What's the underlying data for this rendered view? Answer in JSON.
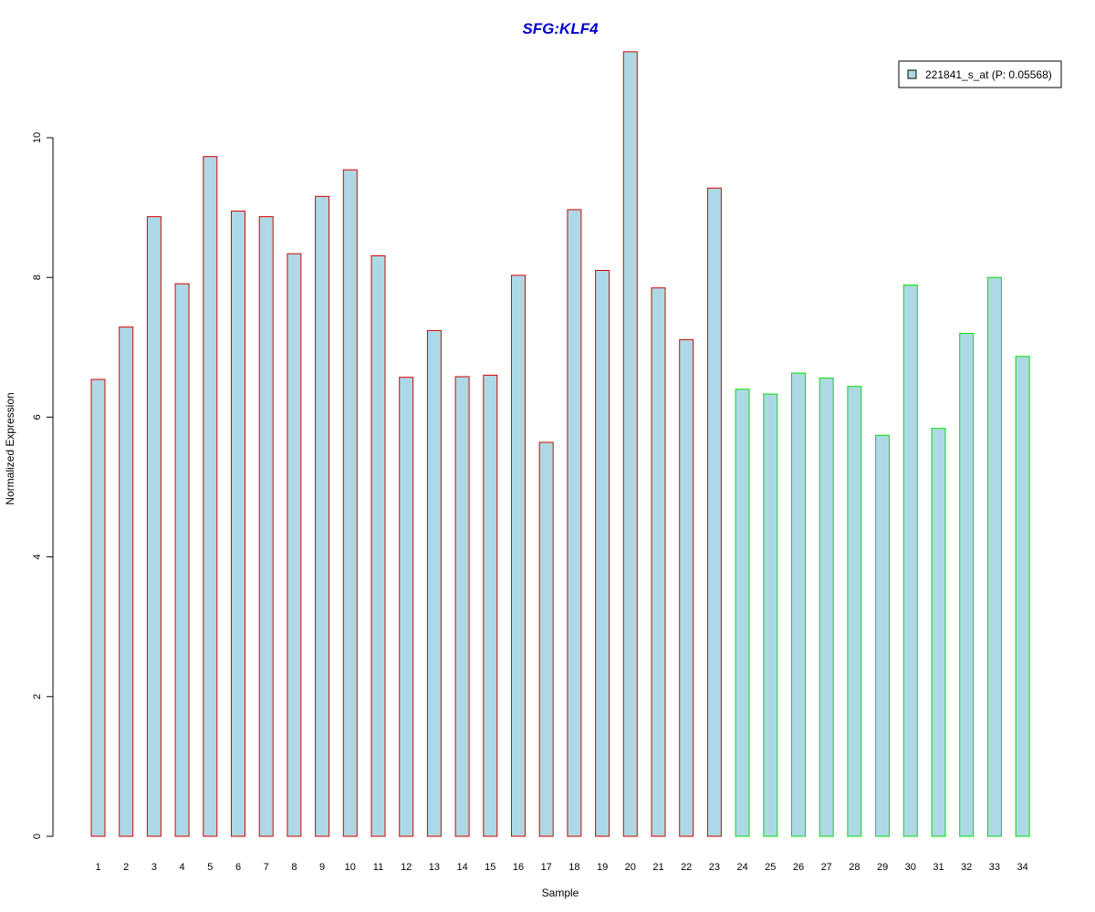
{
  "chart_data": {
    "type": "bar",
    "title": "SFG:KLF4",
    "xlabel": "Sample",
    "ylabel": "Normalized Expression",
    "ylim": [
      0,
      11.3
    ],
    "yticks": [
      "0",
      "2",
      "4",
      "6",
      "8",
      "10"
    ],
    "categories": [
      "1",
      "2",
      "3",
      "4",
      "5",
      "6",
      "7",
      "8",
      "9",
      "10",
      "11",
      "12",
      "13",
      "14",
      "15",
      "16",
      "17",
      "18",
      "19",
      "20",
      "21",
      "22",
      "23",
      "24",
      "25",
      "26",
      "27",
      "28",
      "29",
      "30",
      "31",
      "32",
      "33",
      "34"
    ],
    "series": [
      {
        "name": "221841_s_at (P: 0.05568)",
        "values": [
          6.54,
          7.29,
          8.87,
          7.91,
          9.73,
          8.95,
          8.87,
          8.34,
          9.16,
          9.54,
          8.31,
          6.57,
          7.24,
          6.58,
          6.6,
          8.03,
          5.64,
          8.97,
          8.1,
          11.23,
          7.85,
          7.11,
          9.28,
          6.4,
          6.33,
          6.63,
          6.56,
          6.44,
          5.74,
          7.89,
          5.84,
          7.2,
          8.0,
          6.87
        ]
      }
    ],
    "group_sizes": [
      23,
      11
    ],
    "colors": {
      "fill": "#add8e6",
      "group1_border": "#dd0000",
      "group2_border": "#00e000",
      "title": "#0000cc",
      "axis": "#000000"
    },
    "legend_placement": "top-right",
    "grid": false
  }
}
